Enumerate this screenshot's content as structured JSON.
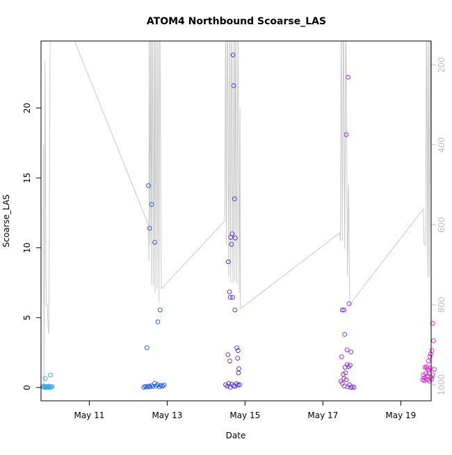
{
  "chart_data": {
    "type": "scatter",
    "title": "ATOM4 Northbound Scoarse_LAS",
    "xlabel": "Date",
    "ylabel": "Scoarse_LAS",
    "x_ticks": [
      "May 11",
      "May 13",
      "May 15",
      "May 17",
      "May 19"
    ],
    "y_ticks": [
      "0",
      "5",
      "10",
      "15",
      "20"
    ],
    "y2_ticks": [
      "200",
      "400",
      "600",
      "800",
      "1000"
    ],
    "xlim_days": [
      9.76,
      19.78
    ],
    "ylim": [
      -0.95,
      24.8
    ],
    "y2lim": [
      1040,
      140
    ],
    "y2_reversed": true,
    "grid": false,
    "colors": {
      "depth_line": "#c8c8c8",
      "series": [
        "#2aa6e8",
        "#1050f0",
        "#4a22ee",
        "#8a1ef0",
        "#e018d4"
      ]
    },
    "series": [
      {
        "points": [
          [
            9.8,
            0.05
          ],
          [
            9.82,
            0.1
          ],
          [
            9.84,
            0.03
          ],
          [
            9.86,
            0.0
          ],
          [
            9.88,
            0.08
          ],
          [
            9.9,
            0.02
          ],
          [
            9.92,
            0.06
          ],
          [
            9.94,
            0.04
          ],
          [
            9.96,
            0.1
          ],
          [
            9.98,
            0.0
          ],
          [
            10.0,
            0.05
          ],
          [
            10.02,
            0.03
          ],
          [
            10.04,
            0.07
          ],
          [
            9.87,
            0.65
          ],
          [
            10.0,
            0.9
          ]
        ]
      },
      {
        "points": [
          [
            12.48,
            2.85
          ],
          [
            12.52,
            14.45
          ],
          [
            12.55,
            11.4
          ],
          [
            12.6,
            13.1
          ],
          [
            12.68,
            10.4
          ],
          [
            12.76,
            4.7
          ],
          [
            12.82,
            5.55
          ],
          [
            12.4,
            0.02
          ],
          [
            12.44,
            0.08
          ],
          [
            12.48,
            0.03
          ],
          [
            12.52,
            0.1
          ],
          [
            12.56,
            0.05
          ],
          [
            12.6,
            0.15
          ],
          [
            12.64,
            0.08
          ],
          [
            12.68,
            0.3
          ],
          [
            12.72,
            0.12
          ],
          [
            12.76,
            0.2
          ],
          [
            12.8,
            0.05
          ],
          [
            12.84,
            0.15
          ],
          [
            12.88,
            0.1
          ],
          [
            12.92,
            0.18
          ]
        ]
      },
      {
        "points": [
          [
            14.57,
            9.0
          ],
          [
            14.6,
            6.85
          ],
          [
            14.63,
            10.75
          ],
          [
            14.65,
            10.25
          ],
          [
            14.67,
            11.0
          ],
          [
            14.69,
            23.8
          ],
          [
            14.71,
            21.6
          ],
          [
            14.73,
            13.5
          ],
          [
            14.75,
            10.7
          ],
          [
            14.62,
            6.45
          ],
          [
            14.68,
            6.45
          ],
          [
            14.74,
            5.55
          ],
          [
            14.56,
            2.35
          ],
          [
            14.61,
            1.9
          ],
          [
            14.79,
            2.85
          ],
          [
            14.81,
            2.1
          ],
          [
            14.84,
            1.35
          ],
          [
            14.82,
            2.65
          ],
          [
            14.83,
            1.05
          ],
          [
            14.5,
            0.2
          ],
          [
            14.54,
            0.1
          ],
          [
            14.58,
            0.3
          ],
          [
            14.62,
            0.02
          ],
          [
            14.66,
            0.25
          ],
          [
            14.7,
            0.12
          ],
          [
            14.74,
            0.08
          ],
          [
            14.78,
            0.28
          ],
          [
            14.82,
            0.18
          ],
          [
            14.86,
            0.2
          ]
        ]
      },
      {
        "points": [
          [
            17.5,
            5.55
          ],
          [
            17.54,
            5.55
          ],
          [
            17.56,
            3.8
          ],
          [
            17.6,
            18.1
          ],
          [
            17.65,
            22.2
          ],
          [
            17.67,
            6.0
          ],
          [
            17.72,
            2.55
          ],
          [
            17.62,
            2.7
          ],
          [
            17.48,
            2.2
          ],
          [
            17.57,
            1.45
          ],
          [
            17.62,
            1.65
          ],
          [
            17.66,
            1.5
          ],
          [
            17.7,
            1.6
          ],
          [
            17.52,
            0.95
          ],
          [
            17.58,
            1.05
          ],
          [
            17.54,
            0.65
          ],
          [
            17.46,
            0.45
          ],
          [
            17.5,
            0.3
          ],
          [
            17.55,
            0.1
          ],
          [
            17.6,
            0.55
          ],
          [
            17.64,
            0.05
          ],
          [
            17.68,
            0.2
          ],
          [
            17.72,
            0.0
          ],
          [
            17.76,
            0.05
          ],
          [
            17.8,
            0.02
          ]
        ]
      },
      {
        "points": [
          [
            19.82,
            4.6
          ],
          [
            19.84,
            3.35
          ],
          [
            19.8,
            2.65
          ],
          [
            19.77,
            2.4
          ],
          [
            19.75,
            2.2
          ],
          [
            19.71,
            1.9
          ],
          [
            19.66,
            1.5
          ],
          [
            19.62,
            1.45
          ],
          [
            19.68,
            1.35
          ],
          [
            19.72,
            1.25
          ],
          [
            19.76,
            1.4
          ],
          [
            19.86,
            1.3
          ],
          [
            19.58,
            0.9
          ],
          [
            19.6,
            0.7
          ],
          [
            19.64,
            1.0
          ],
          [
            19.69,
            0.85
          ],
          [
            19.73,
            1.0
          ],
          [
            19.78,
            0.75
          ],
          [
            19.82,
            0.9
          ],
          [
            19.56,
            0.55
          ],
          [
            19.6,
            0.5
          ],
          [
            19.65,
            0.6
          ],
          [
            19.7,
            0.55
          ],
          [
            19.74,
            0.45
          ],
          [
            19.79,
            0.6
          ]
        ]
      }
    ],
    "depth_line": [
      [
        9.82,
        400
      ],
      [
        9.84,
        1000
      ],
      [
        9.86,
        190
      ],
      [
        9.89,
        800
      ],
      [
        9.92,
        800
      ],
      [
        9.95,
        870
      ],
      [
        9.96,
        870
      ],
      [
        10.0,
        60
      ],
      [
        10.06,
        60
      ],
      [
        10.58,
        130
      ],
      [
        12.52,
        600
      ],
      [
        12.53,
        690
      ],
      [
        12.54,
        50
      ],
      [
        12.56,
        650
      ],
      [
        12.58,
        50
      ],
      [
        12.6,
        750
      ],
      [
        12.62,
        50
      ],
      [
        12.65,
        750
      ],
      [
        12.67,
        50
      ],
      [
        12.69,
        770
      ],
      [
        12.71,
        50
      ],
      [
        12.74,
        760
      ],
      [
        12.76,
        50
      ],
      [
        12.79,
        790
      ],
      [
        12.81,
        50
      ],
      [
        12.85,
        760
      ],
      [
        14.48,
        590
      ],
      [
        14.5,
        50
      ],
      [
        14.52,
        650
      ],
      [
        14.55,
        50
      ],
      [
        14.58,
        730
      ],
      [
        14.61,
        50
      ],
      [
        14.63,
        745
      ],
      [
        14.66,
        50
      ],
      [
        14.69,
        745
      ],
      [
        14.72,
        50
      ],
      [
        14.74,
        740
      ],
      [
        14.76,
        50
      ],
      [
        14.79,
        745
      ],
      [
        14.82,
        50
      ],
      [
        14.85,
        770
      ],
      [
        14.87,
        310
      ],
      [
        14.88,
        810
      ],
      [
        17.43,
        620
      ],
      [
        17.45,
        640
      ],
      [
        17.47,
        50
      ],
      [
        17.5,
        640
      ],
      [
        17.53,
        50
      ],
      [
        17.56,
        660
      ],
      [
        17.59,
        50
      ],
      [
        17.63,
        730
      ],
      [
        17.66,
        500
      ],
      [
        17.69,
        800
      ],
      [
        17.72,
        800
      ],
      [
        17.76,
        790
      ],
      [
        19.58,
        560
      ],
      [
        19.6,
        650
      ],
      [
        19.64,
        650
      ],
      [
        19.66,
        50
      ],
      [
        19.69,
        730
      ],
      [
        19.71,
        50
      ],
      [
        19.73,
        730
      ],
      [
        19.76,
        50
      ],
      [
        19.78,
        730
      ]
    ]
  }
}
